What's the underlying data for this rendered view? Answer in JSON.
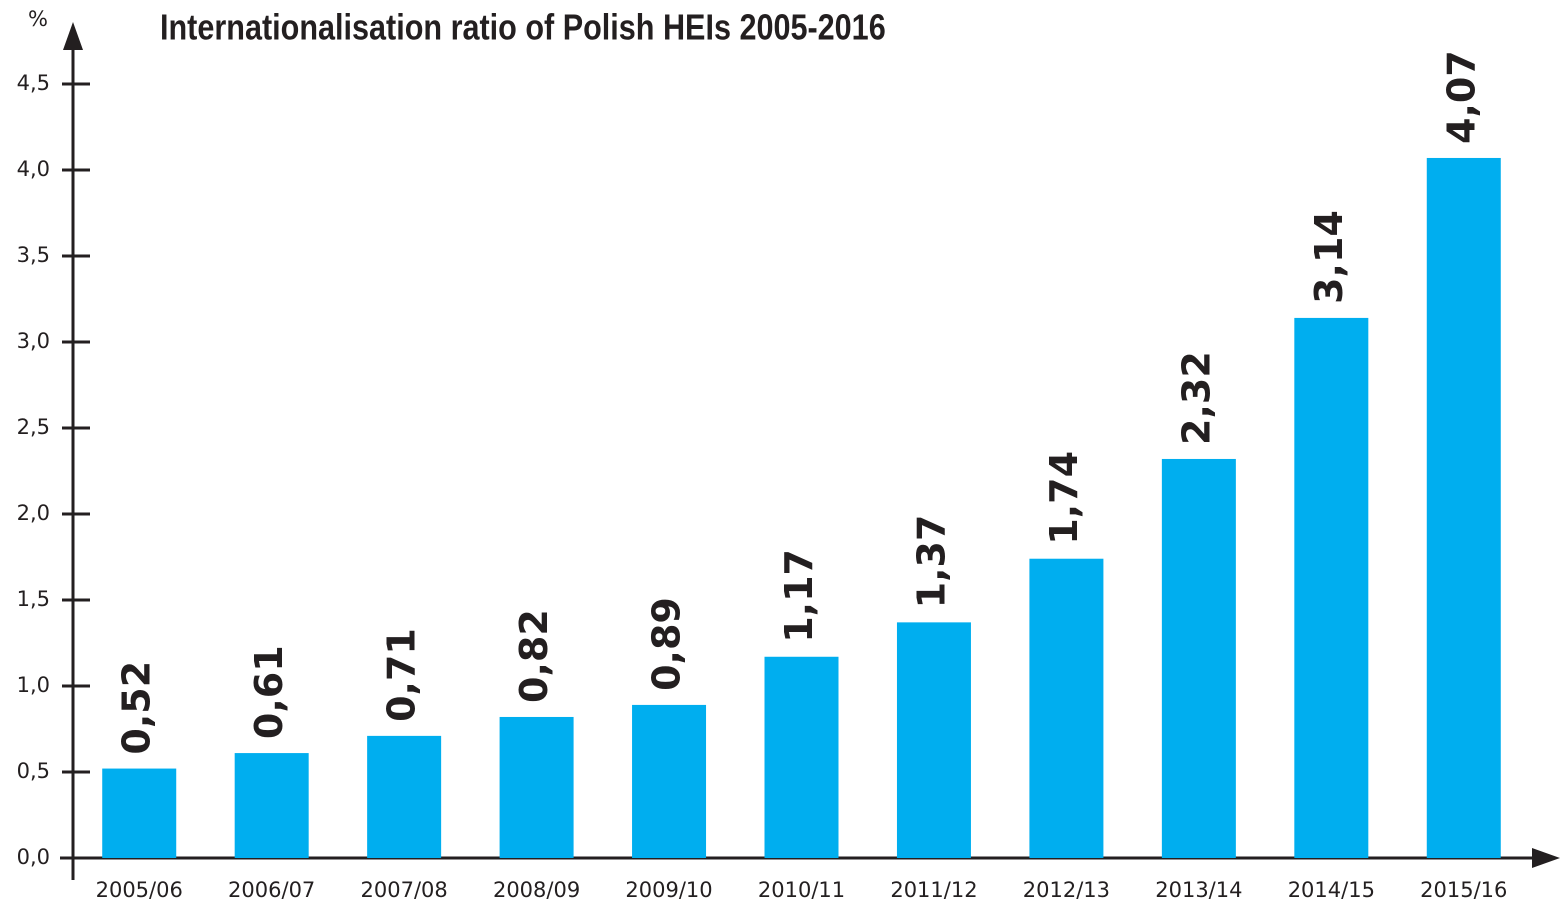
{
  "chart_data": {
    "type": "bar",
    "title": "Internationalisation ratio of Polish HEIs 2005-2016",
    "ylabel": "%",
    "categories": [
      "2005/06",
      "2006/07",
      "2007/08",
      "2008/09",
      "2009/10",
      "2010/11",
      "2011/12",
      "2012/13",
      "2013/14",
      "2014/15",
      "2015/16"
    ],
    "values": [
      0.52,
      0.61,
      0.71,
      0.82,
      0.89,
      1.17,
      1.37,
      1.74,
      2.32,
      3.14,
      4.07
    ],
    "value_labels": [
      "0,52",
      "0,61",
      "0,71",
      "0,82",
      "0,89",
      "1,17",
      "1,37",
      "1,74",
      "2,32",
      "3,14",
      "4,07"
    ],
    "color": "#00aeef",
    "ylim": [
      0,
      4.5
    ],
    "yticks": [
      {
        "value": 0,
        "label": "0,0"
      },
      {
        "value": 0.5,
        "label": "0,5"
      },
      {
        "value": 1,
        "label": "1,0"
      },
      {
        "value": 1.5,
        "label": "1,5"
      },
      {
        "value": 2,
        "label": "2,0"
      },
      {
        "value": 2.5,
        "label": "2,5"
      },
      {
        "value": 3,
        "label": "3,0"
      },
      {
        "value": 3.5,
        "label": "3,5"
      },
      {
        "value": 4,
        "label": "4,0"
      },
      {
        "value": 4.5,
        "label": "4,5"
      }
    ],
    "grid": false
  }
}
